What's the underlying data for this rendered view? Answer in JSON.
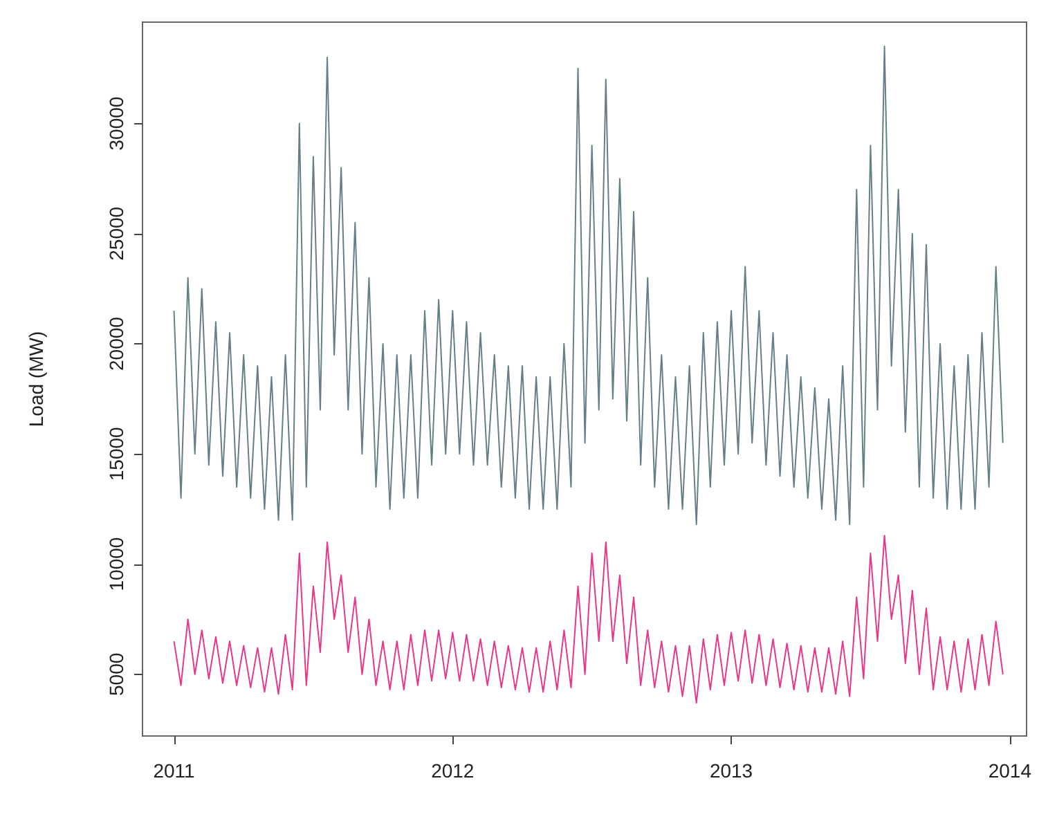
{
  "chart_data": {
    "type": "line",
    "ylabel": "Load (MW)",
    "grid": false,
    "marker": "none",
    "line_style": "solid",
    "xlim": [
      2010.887,
      2014.06
    ],
    "xticks": [
      2011,
      2012,
      2013,
      2014
    ],
    "ylim": [
      2200,
      34600
    ],
    "yticks": [
      5000,
      10000,
      15000,
      20000,
      25000,
      30000
    ],
    "x": [
      2011,
      2011.025,
      2011.05,
      2011.075,
      2011.1,
      2011.125,
      2011.15,
      2011.175,
      2011.2,
      2011.225,
      2011.25,
      2011.275,
      2011.3,
      2011.325,
      2011.35,
      2011.375,
      2011.4,
      2011.425,
      2011.45,
      2011.475,
      2011.5,
      2011.525,
      2011.55,
      2011.575,
      2011.6,
      2011.625,
      2011.65,
      2011.675,
      2011.7,
      2011.725,
      2011.75,
      2011.775,
      2011.8,
      2011.825,
      2011.85,
      2011.875,
      2011.9,
      2011.925,
      2011.95,
      2011.975,
      2012,
      2012.025,
      2012.05,
      2012.075,
      2012.1,
      2012.125,
      2012.15,
      2012.175,
      2012.2,
      2012.225,
      2012.25,
      2012.275,
      2012.3,
      2012.325,
      2012.35,
      2012.375,
      2012.4,
      2012.425,
      2012.45,
      2012.475,
      2012.5,
      2012.525,
      2012.55,
      2012.575,
      2012.6,
      2012.625,
      2012.65,
      2012.675,
      2012.7,
      2012.725,
      2012.75,
      2012.775,
      2012.8,
      2012.825,
      2012.85,
      2012.875,
      2012.9,
      2012.925,
      2012.95,
      2012.975,
      2013,
      2013.025,
      2013.05,
      2013.075,
      2013.1,
      2013.125,
      2013.15,
      2013.175,
      2013.2,
      2013.225,
      2013.25,
      2013.275,
      2013.3,
      2013.325,
      2013.35,
      2013.375,
      2013.4,
      2013.425,
      2013.45,
      2013.475,
      2013.5,
      2013.525,
      2013.55,
      2013.575,
      2013.6,
      2013.625,
      2013.65,
      2013.675,
      2013.7,
      2013.725,
      2013.75,
      2013.775,
      2013.8,
      2013.825,
      2013.85,
      2013.875,
      2013.9,
      2013.925,
      2013.95,
      2013.975
    ],
    "series": [
      {
        "color": "#657f88",
        "values": [
          21500,
          13000,
          23000,
          15000,
          22500,
          14500,
          21000,
          14000,
          20500,
          13500,
          19500,
          13000,
          19000,
          12500,
          18500,
          12000,
          19500,
          12000,
          30000,
          13500,
          28500,
          17000,
          33000,
          19500,
          28000,
          17000,
          25500,
          15000,
          23000,
          13500,
          20000,
          12500,
          19500,
          13000,
          19500,
          13000,
          21500,
          14500,
          22000,
          15000,
          21500,
          15000,
          21000,
          14500,
          20500,
          14500,
          19500,
          13500,
          19000,
          13000,
          19000,
          12500,
          18500,
          12500,
          18500,
          12500,
          20000,
          13500,
          32500,
          15500,
          29000,
          17000,
          32000,
          17500,
          27500,
          16500,
          26000,
          14500,
          23000,
          13500,
          19500,
          12500,
          18500,
          12500,
          19000,
          11800,
          20500,
          13500,
          21000,
          14500,
          21500,
          15000,
          23500,
          15500,
          21500,
          14500,
          20500,
          14000,
          19500,
          13500,
          18500,
          13000,
          18000,
          12500,
          17500,
          12000,
          19000,
          11800,
          27000,
          13500,
          29000,
          17000,
          33500,
          19000,
          27000,
          16000,
          25000,
          13500,
          24500,
          13000,
          20000,
          12500,
          19000,
          12500,
          19500,
          12500,
          20500,
          13500,
          23500,
          15500
        ]
      },
      {
        "color": "#e8368a",
        "values": [
          6500,
          4500,
          7500,
          5000,
          7000,
          4800,
          6700,
          4600,
          6500,
          4500,
          6300,
          4400,
          6200,
          4200,
          6200,
          4100,
          6800,
          4300,
          10500,
          4500,
          9000,
          6000,
          11000,
          7500,
          9500,
          6000,
          8500,
          5000,
          7500,
          4500,
          6500,
          4300,
          6500,
          4300,
          6800,
          4500,
          7000,
          4700,
          7000,
          4800,
          6900,
          4700,
          6800,
          4700,
          6600,
          4500,
          6500,
          4400,
          6300,
          4300,
          6200,
          4200,
          6200,
          4200,
          6500,
          4300,
          7000,
          4400,
          9000,
          5000,
          10500,
          6500,
          11000,
          6500,
          9500,
          5500,
          8500,
          4500,
          7000,
          4400,
          6500,
          4200,
          6300,
          4000,
          6300,
          3700,
          6600,
          4300,
          6800,
          4500,
          6900,
          4700,
          7000,
          4600,
          6800,
          4500,
          6600,
          4400,
          6400,
          4300,
          6300,
          4200,
          6200,
          4200,
          6200,
          4100,
          6500,
          4000,
          8500,
          4800,
          10500,
          6500,
          11300,
          7500,
          9500,
          5500,
          8800,
          5000,
          8000,
          4300,
          6700,
          4300,
          6500,
          4200,
          6600,
          4300,
          6800,
          4500,
          7400,
          5000
        ]
      }
    ]
  }
}
